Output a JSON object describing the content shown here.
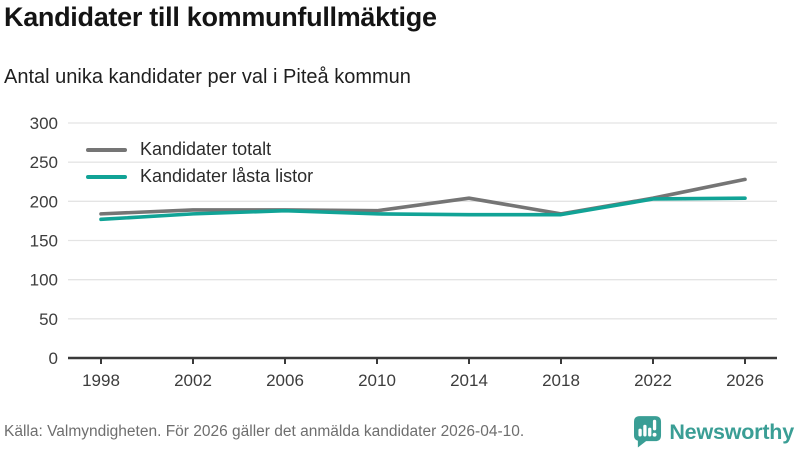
{
  "header": {
    "title": "Kandidater till kommunfullmäktige",
    "subtitle": "Antal unika kandidater per val i Piteå kommun"
  },
  "chart_data": {
    "type": "line",
    "x": [
      1998,
      2002,
      2006,
      2010,
      2014,
      2018,
      2022,
      2026
    ],
    "series": [
      {
        "name": "Kandidater totalt",
        "color": "#757575",
        "values": [
          184,
          189,
          189,
          188,
          204,
          184,
          204,
          228
        ]
      },
      {
        "name": "Kandidater låsta listor",
        "color": "#11a396",
        "values": [
          177,
          184,
          188,
          184,
          183,
          183,
          203,
          204
        ]
      }
    ],
    "title": "Kandidater till kommunfullmäktige",
    "subtitle": "Antal unika kandidater per val i Piteå kommun",
    "xlabel": "",
    "ylabel": "",
    "ylim": [
      0,
      300
    ],
    "yticks": [
      0,
      50,
      100,
      150,
      200,
      250,
      300
    ],
    "grid": true,
    "legend_position": "top-left",
    "grid_color": "#e4e4e4",
    "axis_color": "#3a3a3a"
  },
  "footer": {
    "source": "Källa: Valmyndigheten. För 2026 gäller det anmälda kandidater 2026-04-10.",
    "brand": "Newsworthy",
    "brand_color": "#3a9e95"
  }
}
